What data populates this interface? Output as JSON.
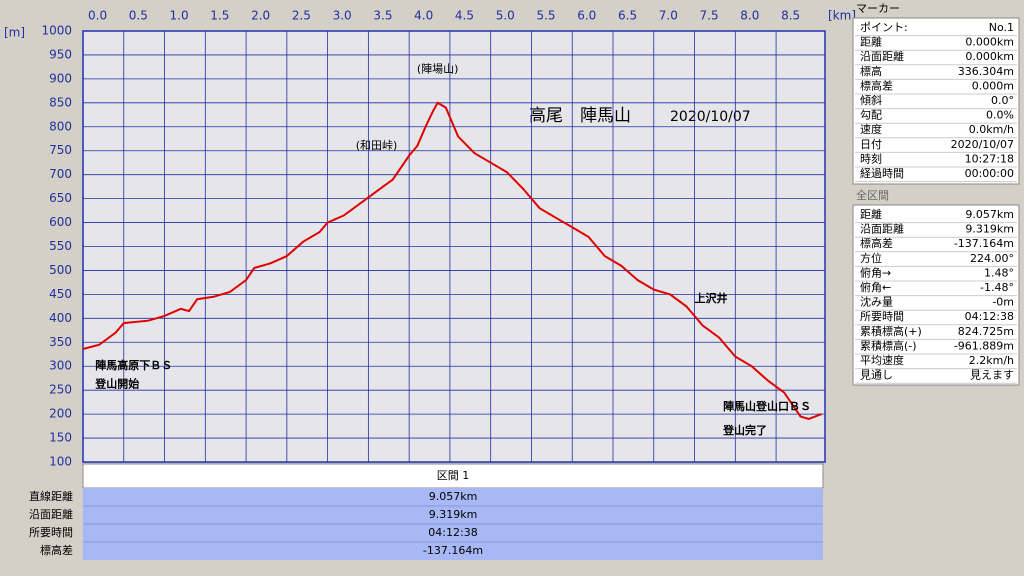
{
  "chart_data": {
    "type": "line",
    "title": "高尾　陣馬山",
    "subtitle": "2020/10/07",
    "x_label": "[km]",
    "y_label": "[m]",
    "x": [
      0,
      0.2,
      0.4,
      0.5,
      0.8,
      1.0,
      1.2,
      1.3,
      1.4,
      1.6,
      1.8,
      2.0,
      2.1,
      2.3,
      2.5,
      2.7,
      2.9,
      3.0,
      3.2,
      3.4,
      3.6,
      3.8,
      4.0,
      4.1,
      4.2,
      4.3,
      4.35,
      4.45,
      4.6,
      4.8,
      5.0,
      5.2,
      5.4,
      5.6,
      5.8,
      6.0,
      6.2,
      6.4,
      6.6,
      6.8,
      7.0,
      7.2,
      7.4,
      7.6,
      7.8,
      8.0,
      8.2,
      8.4,
      8.6,
      8.8,
      8.9,
      9.057
    ],
    "values": [
      336,
      345,
      370,
      390,
      395,
      405,
      420,
      415,
      440,
      445,
      455,
      480,
      505,
      515,
      530,
      560,
      580,
      600,
      615,
      640,
      665,
      690,
      740,
      760,
      800,
      835,
      850,
      840,
      780,
      745,
      725,
      705,
      670,
      630,
      610,
      590,
      570,
      530,
      510,
      480,
      460,
      450,
      425,
      385,
      360,
      320,
      300,
      270,
      245,
      195,
      190,
      200
    ],
    "color": "#e00000",
    "xlim": [
      0,
      9.1
    ],
    "ylim": [
      100,
      1000
    ],
    "xticks": [
      {
        "value": 0,
        "label": "0.0"
      },
      0.5,
      {
        "value": 1,
        "label": "1.0"
      },
      1.5,
      {
        "value": 2,
        "label": "2.0"
      },
      2.5,
      {
        "value": 3,
        "label": "3.0"
      },
      3.5,
      {
        "value": 4,
        "label": "4.0"
      },
      4.5,
      {
        "value": 5,
        "label": "5.0"
      },
      5.5,
      {
        "value": 6,
        "label": "6.0"
      },
      6.5,
      {
        "value": 7,
        "label": "7.0"
      },
      7.5,
      {
        "value": 8,
        "label": "8.0"
      },
      8.5
    ],
    "yticks": [
      100,
      150,
      200,
      250,
      300,
      350,
      400,
      450,
      500,
      550,
      600,
      650,
      700,
      750,
      800,
      850,
      900,
      950,
      1000
    ],
    "grid": true,
    "annotations": [
      {
        "text": "(陣場山)",
        "x": 4.35,
        "y": 920
      },
      {
        "text": "(和田峠)",
        "x": 3.6,
        "y": 760
      },
      {
        "text": "上沢井",
        "x": 7.5,
        "y": 440
      },
      {
        "text": "陣馬高原下ＢＳ",
        "x": 0.15,
        "y": 300
      },
      {
        "text": "登山開始",
        "x": 0.15,
        "y": 262
      },
      {
        "text": "陣馬山登山口ＢＳ",
        "x": 7.85,
        "y": 215
      },
      {
        "text": "登山完了",
        "x": 7.85,
        "y": 165
      }
    ]
  },
  "segment_table": {
    "header": "区間 1",
    "rows": [
      [
        "直線距離",
        "9.057km"
      ],
      [
        "沿面距離",
        "9.319km"
      ],
      [
        "所要時間",
        "04:12:38"
      ],
      [
        "標高差",
        "-137.164m"
      ]
    ]
  },
  "marker_panel": {
    "title": "マーカー",
    "rows": [
      [
        "ポイント:",
        "No.1"
      ],
      [
        "距離",
        "0.000km"
      ],
      [
        "沿面距離",
        "0.000km"
      ],
      [
        "標高",
        "336.304m"
      ],
      [
        "標高差",
        "0.000m"
      ],
      [
        "傾斜",
        "0.0°"
      ],
      [
        "勾配",
        "0.0%"
      ],
      [
        "速度",
        "0.0km/h"
      ],
      [
        "日付",
        "2020/10/07"
      ],
      [
        "時刻",
        "10:27:18"
      ],
      [
        "経過時間",
        "00:00:00"
      ]
    ]
  },
  "total_panel": {
    "title": "全区間",
    "rows": [
      [
        "距離",
        "9.057km"
      ],
      [
        "沿面距離",
        "9.319km"
      ],
      [
        "標高差",
        "-137.164m"
      ],
      [
        "方位",
        "224.00°"
      ],
      [
        "俯角→",
        "1.48°"
      ],
      [
        "俯角←",
        "-1.48°"
      ],
      [
        "沈み量",
        "-0m"
      ],
      [
        "所要時間",
        "04:12:38"
      ],
      [
        "累積標高(+)",
        "824.725m"
      ],
      [
        "累積標高(-)",
        "-961.889m"
      ],
      [
        "平均速度",
        "2.2km/h"
      ],
      [
        "見通し",
        "見えます"
      ]
    ]
  }
}
